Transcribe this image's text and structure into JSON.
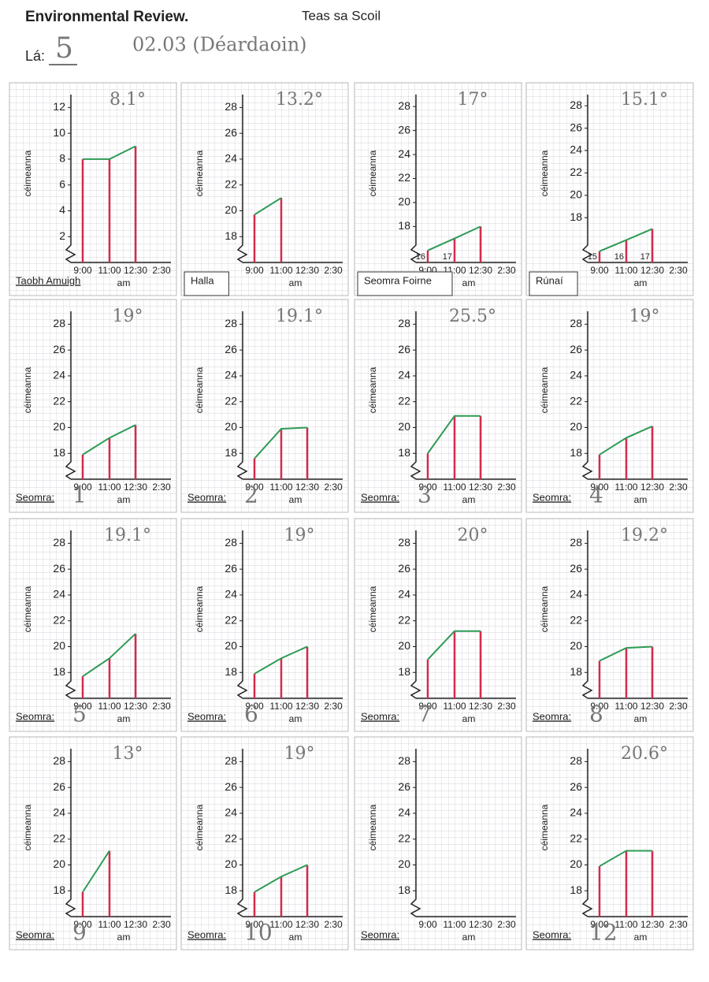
{
  "header": {
    "title": "Environmental Review.",
    "subtitle": "Teas sa Scoil",
    "day_label": "Lá:",
    "day": "5",
    "date": "02.03 (Déardaoin)"
  },
  "chart_data": [
    {
      "type": "line",
      "title": "8.1°",
      "ylabel": "céimeanna",
      "xlabel": "am",
      "room_label": "Taobh Amuigh",
      "categories": [
        "9:00",
        "11:00",
        "12:30",
        "2:30"
      ],
      "values": [
        8,
        8,
        9,
        null
      ],
      "ylim": [
        0,
        13
      ],
      "yticks": [
        2,
        4,
        6,
        8,
        10,
        12
      ],
      "color": "#2e9b55",
      "bar_color": "#d42a4c"
    },
    {
      "type": "line",
      "title": "13.2°",
      "ylabel": "céimeanna",
      "xlabel": "am",
      "room_label": "Halla",
      "categories": [
        "9:00",
        "11:00",
        "12:30",
        "2:30"
      ],
      "values": [
        19.7,
        21,
        null,
        null
      ],
      "ylim": [
        16,
        29
      ],
      "yticks": [
        18,
        20,
        22,
        24,
        26,
        28
      ],
      "color": "#2e9b55",
      "bar_color": "#d42a4c"
    },
    {
      "type": "line",
      "title": "17°",
      "ylabel": "céimeanna",
      "xlabel": "am",
      "room_label": "Seomra Foirne",
      "categories": [
        "9:00",
        "11:00",
        "12:30",
        "2:30"
      ],
      "values": [
        16,
        17,
        18,
        null
      ],
      "value_labels": [
        "16",
        "17",
        null,
        null
      ],
      "ylim": [
        15,
        29
      ],
      "yticks": [
        18,
        20,
        22,
        24,
        26,
        28
      ],
      "color": "#2e9b55",
      "bar_color": "#d42a4c"
    },
    {
      "type": "line",
      "title": "15.1°",
      "ylabel": "céimeanna",
      "xlabel": "am",
      "room_label": "Rúnaí",
      "categories": [
        "9:00",
        "11:00",
        "12:30",
        "2:30"
      ],
      "values": [
        15,
        16,
        17,
        null
      ],
      "value_labels": [
        "15",
        "16",
        "17",
        null
      ],
      "ylim": [
        14,
        29
      ],
      "yticks": [
        18,
        20,
        22,
        24,
        26,
        28
      ],
      "color": "#2e9b55",
      "bar_color": "#d42a4c"
    },
    {
      "type": "line",
      "title": "19°",
      "ylabel": "céimeanna",
      "xlabel": "am",
      "room_label": "Seomra:",
      "room": "1",
      "categories": [
        "9:00",
        "11:00",
        "12:30",
        "2:30"
      ],
      "values": [
        17.9,
        19.2,
        20.2,
        null
      ],
      "ylim": [
        16,
        29
      ],
      "yticks": [
        18,
        20,
        22,
        24,
        26,
        28
      ],
      "color": "#2e9b55",
      "bar_color": "#d42a4c"
    },
    {
      "type": "line",
      "title": "19.1°",
      "ylabel": "céimeanna",
      "xlabel": "am",
      "room_label": "Seomra:",
      "room": "2",
      "categories": [
        "9:00",
        "11:00",
        "12:30",
        "2:30"
      ],
      "values": [
        17.6,
        19.9,
        20,
        null
      ],
      "ylim": [
        16,
        29
      ],
      "yticks": [
        18,
        20,
        22,
        24,
        26,
        28
      ],
      "color": "#2e9b55",
      "bar_color": "#d42a4c"
    },
    {
      "type": "line",
      "title": "25.5°",
      "ylabel": "céimeanna",
      "xlabel": "am",
      "room_label": "Seomra:",
      "room": "3",
      "categories": [
        "9:00",
        "11:00",
        "12:30",
        "2:30"
      ],
      "values": [
        18,
        20.9,
        20.9,
        null
      ],
      "ylim": [
        16,
        29
      ],
      "yticks": [
        18,
        20,
        22,
        24,
        26,
        28
      ],
      "color": "#2e9b55",
      "bar_color": "#d42a4c"
    },
    {
      "type": "line",
      "title": "19°",
      "ylabel": "céimeanna",
      "xlabel": "am",
      "room_label": "Seomra:",
      "room": "4",
      "categories": [
        "9:00",
        "11:00",
        "12:30",
        "2:30"
      ],
      "values": [
        17.9,
        19.2,
        20.1,
        null
      ],
      "ylim": [
        16,
        29
      ],
      "yticks": [
        18,
        20,
        22,
        24,
        26,
        28
      ],
      "color": "#2e9b55",
      "bar_color": "#d42a4c"
    },
    {
      "type": "line",
      "title": "19.1°",
      "ylabel": "céimeanna",
      "xlabel": "am",
      "room_label": "Seomra:",
      "room": "5",
      "categories": [
        "9:00",
        "11:00",
        "12:30",
        "2:30"
      ],
      "values": [
        17.7,
        19.1,
        21,
        null
      ],
      "ylim": [
        16,
        29
      ],
      "yticks": [
        18,
        20,
        22,
        24,
        26,
        28
      ],
      "color": "#2e9b55",
      "bar_color": "#d42a4c"
    },
    {
      "type": "line",
      "title": "19°",
      "ylabel": "céimeanna",
      "xlabel": "am",
      "room_label": "Seomra:",
      "room": "6",
      "categories": [
        "9:00",
        "11:00",
        "12:30",
        "2:30"
      ],
      "values": [
        17.9,
        19.1,
        20,
        null
      ],
      "ylim": [
        16,
        29
      ],
      "yticks": [
        18,
        20,
        22,
        24,
        26,
        28
      ],
      "color": "#2e9b55",
      "bar_color": "#d42a4c"
    },
    {
      "type": "line",
      "title": "20°",
      "ylabel": "céimeanna",
      "xlabel": "am",
      "room_label": "Seomra:",
      "room": "7",
      "categories": [
        "9:00",
        "11:00",
        "12:30",
        "2:30"
      ],
      "values": [
        19,
        21.2,
        21.2,
        null
      ],
      "ylim": [
        16,
        29
      ],
      "yticks": [
        18,
        20,
        22,
        24,
        26,
        28
      ],
      "color": "#2e9b55",
      "bar_color": "#d42a4c"
    },
    {
      "type": "line",
      "title": "19.2°",
      "ylabel": "céimeanna",
      "xlabel": "am",
      "room_label": "Seomra:",
      "room": "8",
      "categories": [
        "9:00",
        "11:00",
        "12:30",
        "2:30"
      ],
      "values": [
        18.9,
        19.9,
        20,
        null
      ],
      "ylim": [
        16,
        29
      ],
      "yticks": [
        18,
        20,
        22,
        24,
        26,
        28
      ],
      "color": "#2e9b55",
      "bar_color": "#d42a4c"
    },
    {
      "type": "line",
      "title": "13°",
      "ylabel": "céimeanna",
      "xlabel": "am",
      "room_label": "Seomra:",
      "room": "9",
      "categories": [
        "9:00",
        "11:00",
        "12:30",
        "2:30"
      ],
      "values": [
        17.9,
        21.1,
        null,
        null
      ],
      "ylim": [
        16,
        29
      ],
      "yticks": [
        18,
        20,
        22,
        24,
        26,
        28
      ],
      "color": "#2e9b55",
      "bar_color": "#d42a4c"
    },
    {
      "type": "line",
      "title": "19°",
      "ylabel": "céimeanna",
      "xlabel": "am",
      "room_label": "Seomra:",
      "room": "10",
      "categories": [
        "9:00",
        "11:00",
        "12:30",
        "2:30"
      ],
      "values": [
        17.9,
        19.1,
        20,
        null
      ],
      "ylim": [
        16,
        29
      ],
      "yticks": [
        18,
        20,
        22,
        24,
        26,
        28
      ],
      "color": "#2e9b55",
      "bar_color": "#d42a4c"
    },
    {
      "type": "line",
      "ylabel": "céimeanna",
      "xlabel": "am",
      "room_label": "Seomra:",
      "categories": [
        "9:00",
        "11:00",
        "12:30",
        "2:30"
      ],
      "values": [
        null,
        null,
        null,
        null
      ],
      "ylim": [
        16,
        29
      ],
      "yticks": [
        18,
        20,
        22,
        24,
        26,
        28
      ],
      "color": "#2e9b55",
      "bar_color": "#d42a4c"
    },
    {
      "type": "line",
      "title": "20.6°",
      "ylabel": "céimeanna",
      "xlabel": "am",
      "room_label": "Seomra:",
      "room": "12",
      "categories": [
        "9:00",
        "11:00",
        "12:30",
        "2:30"
      ],
      "values": [
        19.9,
        21.1,
        21.1,
        null
      ],
      "ylim": [
        16,
        29
      ],
      "yticks": [
        18,
        20,
        22,
        24,
        26,
        28
      ],
      "color": "#2e9b55",
      "bar_color": "#d42a4c"
    }
  ]
}
